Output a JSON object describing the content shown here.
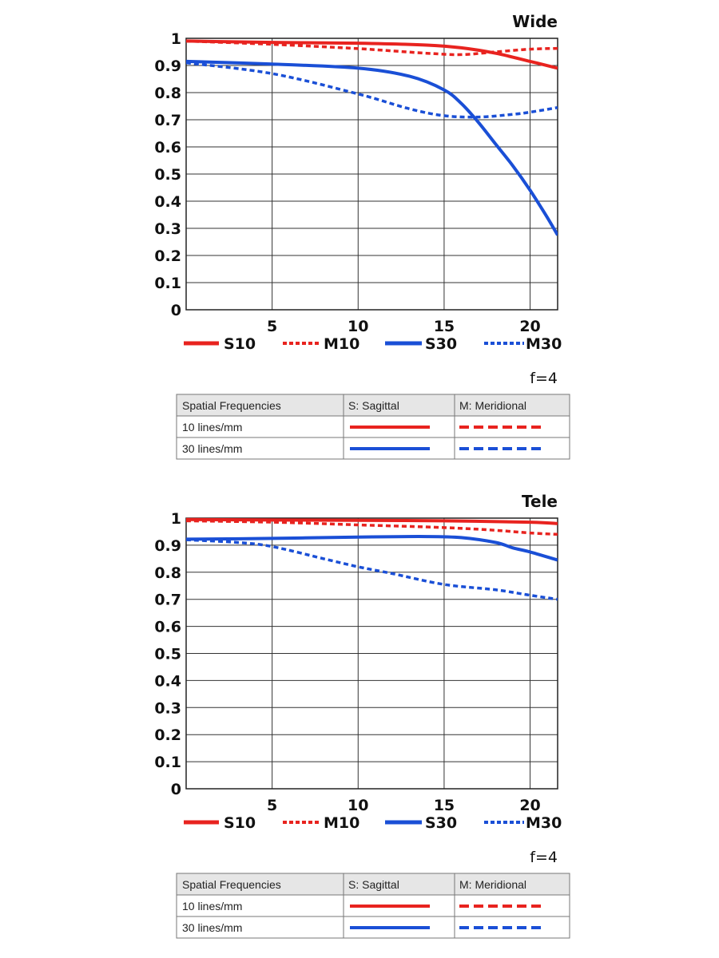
{
  "colors": {
    "sagittal_10": "#e8231f",
    "meridional_10": "#e8231f",
    "sagittal_30": "#1a4fd6",
    "meridional_30": "#1a4fd6"
  },
  "chart_data": [
    {
      "type": "line",
      "title": "Wide",
      "f_label": "f=4",
      "xlim": [
        0,
        21.6
      ],
      "ylim": [
        0,
        1
      ],
      "x_ticks": [
        5,
        10,
        15,
        20
      ],
      "y_ticks": [
        0,
        0.1,
        0.2,
        0.3,
        0.4,
        0.5,
        0.6,
        0.7,
        0.8,
        0.9,
        1
      ],
      "y_tick_labels": [
        "0",
        "0.1",
        "0.2",
        "0.3",
        "0.4",
        "0.5",
        "0.6",
        "0.7",
        "0.8",
        "0.9",
        "1"
      ],
      "grid": true,
      "legend_position": "bottom",
      "series": [
        {
          "name": "S10",
          "style": "solid",
          "color": "#e8231f",
          "x": [
            0,
            5,
            10,
            14,
            16,
            18,
            20,
            21.6
          ],
          "y": [
            0.99,
            0.985,
            0.982,
            0.975,
            0.965,
            0.945,
            0.915,
            0.89
          ]
        },
        {
          "name": "M10",
          "style": "dotted",
          "color": "#e8231f",
          "x": [
            0,
            5,
            10,
            14,
            16,
            18,
            20,
            21.6
          ],
          "y": [
            0.99,
            0.978,
            0.962,
            0.945,
            0.94,
            0.95,
            0.96,
            0.963
          ]
        },
        {
          "name": "S30",
          "style": "solid",
          "color": "#1a4fd6",
          "x": [
            0,
            5,
            10,
            13,
            15,
            16,
            17,
            18,
            19,
            20,
            21,
            21.6
          ],
          "y": [
            0.915,
            0.905,
            0.89,
            0.86,
            0.81,
            0.76,
            0.69,
            0.61,
            0.53,
            0.44,
            0.34,
            0.275
          ]
        },
        {
          "name": "M30",
          "style": "dotted",
          "color": "#1a4fd6",
          "x": [
            0,
            5,
            10,
            13,
            15,
            17,
            19,
            20,
            21.6
          ],
          "y": [
            0.91,
            0.87,
            0.795,
            0.74,
            0.715,
            0.71,
            0.72,
            0.728,
            0.745
          ]
        }
      ],
      "table": {
        "headers": [
          "Spatial Frequencies",
          "S: Sagittal",
          "M: Meridional"
        ],
        "rows": [
          "10 lines/mm",
          "30 lines/mm"
        ]
      }
    },
    {
      "type": "line",
      "title": "Tele",
      "f_label": "f=4",
      "xlim": [
        0,
        21.6
      ],
      "ylim": [
        0,
        1
      ],
      "x_ticks": [
        5,
        10,
        15,
        20
      ],
      "y_ticks": [
        0,
        0.1,
        0.2,
        0.3,
        0.4,
        0.5,
        0.6,
        0.7,
        0.8,
        0.9,
        1
      ],
      "y_tick_labels": [
        "0",
        "0.1",
        "0.2",
        "0.3",
        "0.4",
        "0.5",
        "0.6",
        "0.7",
        "0.8",
        "0.9",
        "1"
      ],
      "grid": true,
      "legend_position": "bottom",
      "series": [
        {
          "name": "S10",
          "style": "solid",
          "color": "#e8231f",
          "x": [
            0,
            5,
            10,
            15,
            20,
            21.6
          ],
          "y": [
            0.995,
            0.993,
            0.992,
            0.99,
            0.985,
            0.98
          ]
        },
        {
          "name": "M10",
          "style": "dotted",
          "color": "#e8231f",
          "x": [
            0,
            5,
            10,
            15,
            18,
            20,
            21.6
          ],
          "y": [
            0.99,
            0.985,
            0.975,
            0.965,
            0.955,
            0.945,
            0.94
          ]
        },
        {
          "name": "S30",
          "style": "solid",
          "color": "#1a4fd6",
          "x": [
            0,
            5,
            10,
            14,
            16,
            18,
            19,
            20,
            21.6
          ],
          "y": [
            0.922,
            0.925,
            0.93,
            0.932,
            0.928,
            0.91,
            0.89,
            0.875,
            0.845
          ]
        },
        {
          "name": "M30",
          "style": "dotted",
          "color": "#1a4fd6",
          "x": [
            0,
            3,
            5,
            8,
            10,
            12,
            15,
            18,
            20,
            21.6
          ],
          "y": [
            0.92,
            0.91,
            0.895,
            0.85,
            0.82,
            0.795,
            0.755,
            0.735,
            0.715,
            0.7
          ]
        }
      ],
      "table": {
        "headers": [
          "Spatial Frequencies",
          "S: Sagittal",
          "M: Meridional"
        ],
        "rows": [
          "10 lines/mm",
          "30 lines/mm"
        ]
      }
    }
  ]
}
